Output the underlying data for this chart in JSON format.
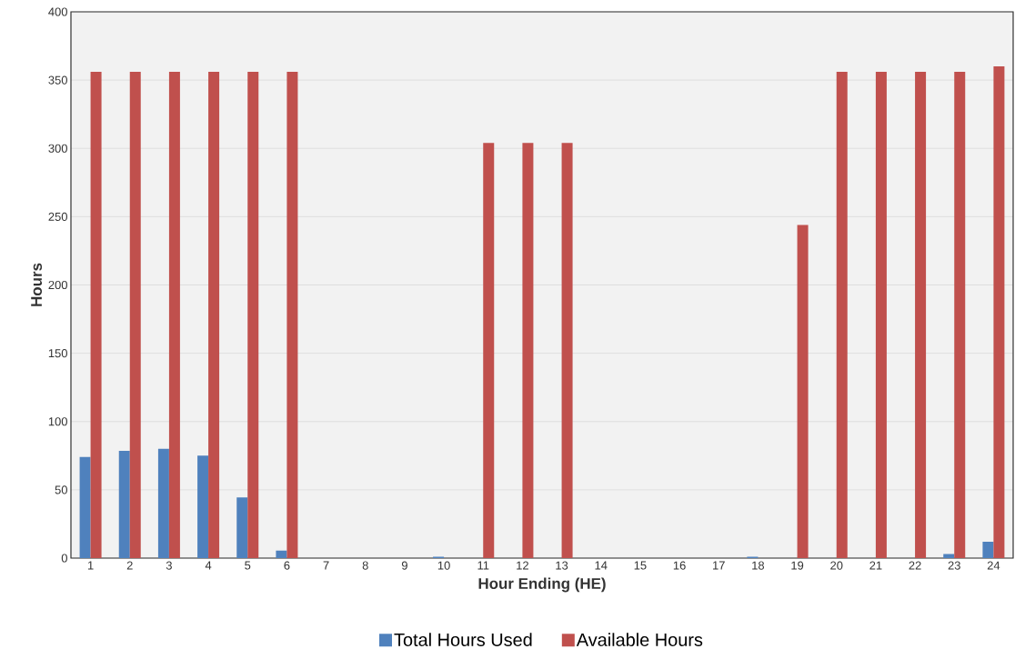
{
  "chart_data": {
    "type": "bar",
    "xlabel": "Hour Ending (HE)",
    "ylabel": "Hours",
    "categories": [
      "1",
      "2",
      "3",
      "4",
      "5",
      "6",
      "7",
      "8",
      "9",
      "10",
      "11",
      "12",
      "13",
      "14",
      "15",
      "16",
      "17",
      "18",
      "19",
      "20",
      "21",
      "22",
      "23",
      "24"
    ],
    "series": [
      {
        "name": "Total Hours Used",
        "color": "#4f81bd",
        "values": [
          74,
          78.5,
          80,
          75,
          44.5,
          5.5,
          0,
          0,
          0,
          1,
          0,
          0,
          0,
          0,
          0,
          0,
          0,
          1,
          0,
          0,
          0,
          0,
          3,
          12
        ]
      },
      {
        "name": "Available Hours",
        "color": "#c0504d",
        "values": [
          356,
          356,
          356,
          356,
          356,
          356,
          0,
          0,
          0,
          0,
          304,
          304,
          304,
          0,
          0,
          0,
          0,
          0,
          244,
          356,
          356,
          356,
          356,
          360
        ]
      }
    ],
    "ylim": [
      0,
      400
    ],
    "yticks": [
      0,
      50,
      100,
      150,
      200,
      250,
      300,
      350,
      400
    ],
    "grid": "y",
    "legend": "bottom"
  }
}
